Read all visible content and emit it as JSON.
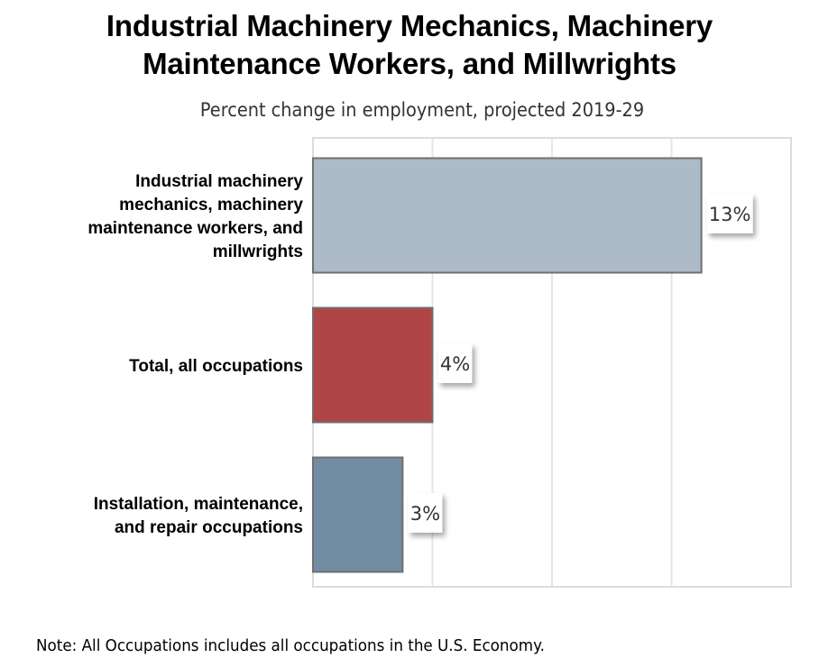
{
  "chart_data": {
    "type": "bar",
    "orientation": "horizontal",
    "title": [
      "Industrial Machinery Mechanics, Machinery",
      "Maintenance Workers, and Millwrights"
    ],
    "subtitle": "Percent change in employment, projected 2019-29",
    "categories": [
      [
        "Industrial machinery",
        "mechanics, machinery",
        "maintenance workers, and",
        "millwrights"
      ],
      [
        "Total, all occupations"
      ],
      [
        "Installation, maintenance,",
        "and repair occupations"
      ]
    ],
    "values": [
      13,
      4,
      3
    ],
    "data_labels": [
      "13%",
      "4%",
      "3%"
    ],
    "bar_colors": [
      "#adbbc8",
      "#b04546",
      "#728da3"
    ],
    "xlabel": "",
    "ylabel": "",
    "xlim": [
      0,
      16
    ],
    "x_gridlines": [
      4,
      8,
      12,
      16
    ],
    "x_tick_labels_visible": false,
    "grid": true,
    "legend": "none",
    "note": "Note: All Occupations includes all occupations in the U.S. Economy."
  }
}
